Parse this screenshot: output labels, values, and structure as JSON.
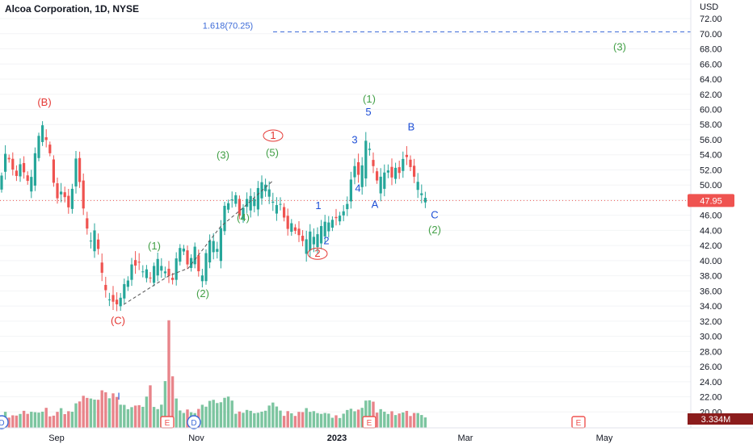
{
  "header": {
    "title": "Alcoa Corporation, 1D, NYSE"
  },
  "chart_data": {
    "type": "candlestick",
    "currency": "USD",
    "ylim": [
      19,
      73
    ],
    "y_ticks": [
      20,
      22,
      24,
      26,
      28,
      30,
      32,
      34,
      36,
      38,
      40,
      42,
      44,
      46,
      48,
      50,
      52,
      54,
      56,
      58,
      60,
      62,
      64,
      66,
      68,
      70,
      72
    ],
    "x_ticks": [
      "Sep",
      "Nov",
      "2023",
      "Mar",
      "May"
    ],
    "last_price": "47.95",
    "volume_label": "3.334M",
    "fib_label": "1.618(70.25)",
    "fib_level": 70.25,
    "colors": {
      "up": "#26a69a",
      "down": "#ef5350",
      "vol_up": "#7cc5a0",
      "vol_down": "#e8848a",
      "wave_red": "#e53935",
      "wave_green": "#43a047",
      "wave_blue": "#1e4fd6",
      "fib": "#3d6bd8"
    },
    "close_path": [
      [
        0,
        50
      ],
      [
        4,
        52.5
      ],
      [
        8,
        55
      ],
      [
        12,
        53
      ],
      [
        16,
        52
      ],
      [
        20,
        51
      ],
      [
        24,
        53
      ],
      [
        28,
        52
      ],
      [
        33,
        51
      ],
      [
        37,
        49.5
      ],
      [
        41,
        53
      ],
      [
        45,
        55
      ],
      [
        49,
        57
      ],
      [
        53,
        58
      ],
      [
        57,
        56
      ],
      [
        61,
        55
      ],
      [
        65,
        51
      ],
      [
        69,
        49
      ],
      [
        73,
        47.5
      ],
      [
        77,
        50
      ],
      [
        81,
        48
      ],
      [
        85,
        47
      ],
      [
        89,
        49
      ],
      [
        93,
        54
      ],
      [
        97,
        52
      ],
      [
        101,
        48
      ],
      [
        105,
        46
      ],
      [
        109,
        43.5
      ],
      [
        113,
        42.5
      ],
      [
        117,
        44
      ],
      [
        121,
        42
      ],
      [
        125,
        39
      ],
      [
        129,
        37
      ],
      [
        133,
        35
      ],
      [
        137,
        34.8
      ],
      [
        141,
        34.5
      ],
      [
        145,
        34.2
      ],
      [
        149,
        35
      ],
      [
        153,
        37
      ],
      [
        157,
        36.5
      ],
      [
        161,
        39
      ],
      [
        165,
        40
      ],
      [
        169,
        39
      ],
      [
        173,
        40
      ],
      [
        177,
        38.5
      ],
      [
        181,
        39
      ],
      [
        185,
        37.5
      ],
      [
        189,
        38.5
      ],
      [
        193,
        40.5
      ],
      [
        197,
        40
      ],
      [
        201,
        39
      ],
      [
        205,
        38.5
      ],
      [
        209,
        38
      ],
      [
        213,
        37
      ],
      [
        217,
        40
      ],
      [
        221,
        41
      ],
      [
        225,
        42.5
      ],
      [
        229,
        41
      ],
      [
        233,
        39
      ],
      [
        237,
        40.5
      ],
      [
        241,
        42
      ],
      [
        245,
        39
      ],
      [
        249,
        37
      ],
      [
        253,
        40
      ],
      [
        257,
        42
      ],
      [
        261,
        43
      ],
      [
        265,
        42.5
      ],
      [
        269,
        41.5
      ],
      [
        273,
        44
      ],
      [
        277,
        47
      ],
      [
        281,
        48
      ],
      [
        285,
        47
      ],
      [
        289,
        49
      ],
      [
        293,
        48.5
      ],
      [
        297,
        45.5
      ],
      [
        301,
        47
      ],
      [
        305,
        48
      ],
      [
        309,
        49
      ],
      [
        313,
        47.5
      ],
      [
        317,
        49
      ],
      [
        321,
        50
      ],
      [
        325,
        50.5
      ],
      [
        329,
        50
      ],
      [
        333,
        49.5
      ],
      [
        337,
        48
      ],
      [
        341,
        47
      ],
      [
        345,
        48
      ],
      [
        349,
        47
      ],
      [
        353,
        45
      ],
      [
        357,
        44
      ],
      [
        361,
        45
      ],
      [
        365,
        44
      ],
      [
        369,
        43.5
      ],
      [
        373,
        43
      ],
      [
        377,
        42
      ],
      [
        381,
        43.5
      ],
      [
        385,
        44
      ],
      [
        389,
        43
      ],
      [
        393,
        43.5
      ],
      [
        397,
        44.5
      ],
      [
        401,
        45
      ],
      [
        405,
        45.5
      ],
      [
        409,
        44.5
      ],
      [
        413,
        46
      ],
      [
        417,
        45.5
      ],
      [
        421,
        46
      ],
      [
        425,
        46.5
      ],
      [
        429,
        47
      ],
      [
        433,
        49.5
      ],
      [
        437,
        53
      ],
      [
        441,
        52
      ],
      [
        445,
        51
      ],
      [
        449,
        53
      ],
      [
        453,
        56
      ],
      [
        457,
        55
      ],
      [
        461,
        53
      ],
      [
        465,
        51
      ],
      [
        469,
        50
      ],
      [
        473,
        52
      ],
      [
        477,
        51.5
      ],
      [
        481,
        52
      ],
      [
        485,
        51
      ],
      [
        489,
        52.5
      ],
      [
        493,
        51
      ],
      [
        497,
        53
      ],
      [
        501,
        54
      ],
      [
        505,
        53.5
      ],
      [
        509,
        52
      ],
      [
        513,
        51
      ],
      [
        517,
        50.5
      ],
      [
        521,
        49
      ],
      [
        525,
        48.5
      ],
      [
        529,
        47.95
      ]
    ],
    "volume_path": [
      [
        0,
        3
      ],
      [
        8,
        4
      ],
      [
        16,
        3.5
      ],
      [
        24,
        4
      ],
      [
        33,
        5
      ],
      [
        41,
        4
      ],
      [
        49,
        6
      ],
      [
        57,
        5
      ],
      [
        65,
        4
      ],
      [
        73,
        5
      ],
      [
        81,
        4
      ],
      [
        89,
        5
      ],
      [
        97,
        7
      ],
      [
        105,
        9
      ],
      [
        113,
        7
      ],
      [
        121,
        8
      ],
      [
        129,
        9
      ],
      [
        137,
        8
      ],
      [
        145,
        8
      ],
      [
        153,
        7
      ],
      [
        161,
        6
      ],
      [
        169,
        5
      ],
      [
        177,
        6
      ],
      [
        185,
        14
      ],
      [
        193,
        5
      ],
      [
        201,
        6
      ],
      [
        209,
        27
      ],
      [
        217,
        9
      ],
      [
        225,
        5
      ],
      [
        233,
        6
      ],
      [
        241,
        5
      ],
      [
        249,
        6
      ],
      [
        257,
        8
      ],
      [
        265,
        7
      ],
      [
        273,
        6
      ],
      [
        281,
        13
      ],
      [
        289,
        5
      ],
      [
        297,
        6
      ],
      [
        305,
        5
      ],
      [
        313,
        4
      ],
      [
        321,
        4
      ],
      [
        329,
        5
      ],
      [
        337,
        6
      ],
      [
        345,
        5
      ],
      [
        353,
        4
      ],
      [
        361,
        5
      ],
      [
        369,
        4
      ],
      [
        377,
        5
      ],
      [
        385,
        4
      ],
      [
        393,
        4
      ],
      [
        401,
        4
      ],
      [
        409,
        4
      ],
      [
        417,
        3
      ],
      [
        425,
        4
      ],
      [
        433,
        5
      ],
      [
        441,
        4
      ],
      [
        449,
        5
      ],
      [
        457,
        8
      ],
      [
        465,
        6
      ],
      [
        473,
        4
      ],
      [
        481,
        4
      ],
      [
        489,
        4
      ],
      [
        497,
        4
      ],
      [
        505,
        4
      ],
      [
        513,
        4
      ],
      [
        521,
        3
      ],
      [
        529,
        3
      ]
    ],
    "zigzag": [
      [
        153,
        34.2
      ],
      [
        209,
        38
      ],
      [
        233,
        39
      ],
      [
        273,
        44.5
      ],
      [
        301,
        47
      ],
      [
        337,
        50.5
      ]
    ],
    "wave_labels": [
      {
        "text": "(B)",
        "x": 55,
        "y": 60.5,
        "color": "red"
      },
      {
        "text": "(C)",
        "x": 146,
        "y": 31.6,
        "color": "red"
      },
      {
        "text": "(1)",
        "x": 191,
        "y": 41.5,
        "color": "green"
      },
      {
        "text": "(2)",
        "x": 251,
        "y": 35.2,
        "color": "green"
      },
      {
        "text": "(3)",
        "x": 276,
        "y": 53.5,
        "color": "green"
      },
      {
        "text": "(4)",
        "x": 301,
        "y": 45.2,
        "color": "green"
      },
      {
        "text": "(5)",
        "x": 337,
        "y": 53.8,
        "color": "green"
      },
      {
        "text": "1",
        "x": 338,
        "y": 56.1,
        "color": "red_circle"
      },
      {
        "text": "1",
        "x": 394,
        "y": 46.8,
        "color": "blue"
      },
      {
        "text": "2",
        "x": 404,
        "y": 42.2,
        "color": "blue"
      },
      {
        "text": "2",
        "x": 393,
        "y": 40.5,
        "color": "red_circle"
      },
      {
        "text": "3",
        "x": 439,
        "y": 55.5,
        "color": "blue"
      },
      {
        "text": "4",
        "x": 443,
        "y": 49.1,
        "color": "blue"
      },
      {
        "text": "5",
        "x": 456,
        "y": 59.2,
        "color": "blue"
      },
      {
        "text": "(1)",
        "x": 457,
        "y": 60.9,
        "color": "green"
      },
      {
        "text": "A",
        "x": 464,
        "y": 47.0,
        "color": "blue"
      },
      {
        "text": "B",
        "x": 509,
        "y": 57.2,
        "color": "blue"
      },
      {
        "text": "C",
        "x": 538,
        "y": 45.6,
        "color": "blue"
      },
      {
        "text": "(2)",
        "x": 538,
        "y": 43.6,
        "color": "green"
      },
      {
        "text": "(3)",
        "x": 767,
        "y": 67.8,
        "color": "green"
      }
    ],
    "event_markers": [
      {
        "text": "D",
        "x": 2,
        "type": "dividend"
      },
      {
        "text": "E",
        "x": 207,
        "type": "earnings"
      },
      {
        "text": "D",
        "x": 240,
        "type": "dividend"
      },
      {
        "text": "E",
        "x": 457,
        "type": "earnings"
      },
      {
        "text": "E",
        "x": 716,
        "type": "earnings"
      }
    ],
    "split_marker": {
      "text": "I",
      "x": 147
    }
  }
}
